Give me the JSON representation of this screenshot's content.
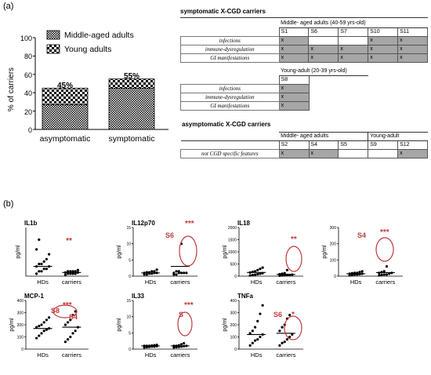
{
  "panel_a_label": "(a)",
  "panel_b_label": "(b)",
  "colors": {
    "accent": "#c0393b",
    "filled_cell": "#a6a6a6"
  },
  "bar_chart": {
    "legend": [
      "Middle-aged adults",
      "Young adults"
    ],
    "ylabel": "% of carriers",
    "ticks": [
      "0",
      "20",
      "40",
      "60",
      "80",
      "100"
    ],
    "categories": [
      "asymptomatic",
      "symptomatic"
    ],
    "bar_labels": [
      "45%",
      "55%"
    ]
  },
  "chart_data": [
    {
      "type": "bar",
      "stacked": true,
      "categories": [
        "asymptomatic",
        "symptomatic"
      ],
      "series": [
        {
          "name": "Middle-aged adults",
          "values": [
            27,
            45
          ]
        },
        {
          "name": "Young adults",
          "values": [
            18,
            10
          ]
        }
      ],
      "data_labels": [
        "45%",
        "55%"
      ],
      "title": "",
      "xlabel": "",
      "ylabel": "% of carriers",
      "ylim": [
        0,
        100
      ],
      "legend": "top-right"
    },
    {
      "type": "scatter",
      "title": "IL1b",
      "ylabel": "pg/ml",
      "categories": [
        "HDs",
        "carriers"
      ],
      "groups": [
        {
          "name": "HDs",
          "values": [
            1,
            2,
            2,
            3,
            3,
            4,
            4,
            5,
            5,
            6,
            7,
            9,
            11,
            15
          ],
          "mean": 4
        },
        {
          "name": "carriers",
          "values": [
            0.5,
            1,
            1,
            1,
            1,
            1.5,
            1.5,
            2,
            2,
            2,
            2,
            2.5
          ],
          "mean": 1.5
        }
      ],
      "significance": "**"
    },
    {
      "type": "scatter",
      "title": "IL12p70",
      "ylabel": "pg/ml",
      "ylim": [
        0,
        15
      ],
      "ticks": [
        "0",
        "5",
        "10",
        "15"
      ],
      "categories": [
        "HDs",
        "carriers"
      ],
      "groups": [
        {
          "name": "HDs",
          "values": [
            0.5,
            0.5,
            0.8,
            0.8,
            1,
            1,
            1,
            1.2,
            1.2,
            1.5,
            1.5,
            2
          ],
          "mean": 1
        },
        {
          "name": "carriers",
          "values": [
            0.5,
            0.5,
            1,
            1,
            1,
            1,
            1,
            1.5,
            1.5,
            10
          ],
          "mean": 3
        }
      ],
      "significance": "***",
      "outlier_label": "S6"
    },
    {
      "type": "scatter",
      "title": "IL18",
      "ylabel": "pg/ml",
      "ylim": [
        0,
        2000
      ],
      "ticks": [
        "0",
        "500",
        "1000",
        "1500",
        "2000"
      ],
      "categories": [
        "HDs",
        "carriers"
      ],
      "groups": [
        {
          "name": "HDs",
          "values": [
            30,
            50,
            60,
            80,
            100,
            120,
            150,
            180,
            200,
            250,
            300,
            350
          ],
          "mean": 150
        },
        {
          "name": "carriers",
          "values": [
            20,
            30,
            40,
            50,
            50,
            60,
            80,
            100,
            120,
            250
          ],
          "mean": 70
        }
      ],
      "significance": "**"
    },
    {
      "type": "scatter",
      "title": "",
      "ylabel": "pg/ml",
      "ylim": [
        0,
        300
      ],
      "ticks": [
        "0",
        "100",
        "200",
        "300"
      ],
      "categories": [
        "HDs",
        "carriers"
      ],
      "groups": [
        {
          "name": "HDs",
          "values": [
            5,
            8,
            10,
            10,
            12,
            15,
            15,
            18,
            20,
            20,
            25,
            30
          ],
          "mean": 15
        },
        {
          "name": "carriers",
          "values": [
            5,
            8,
            10,
            10,
            15,
            20,
            20,
            25,
            30,
            60
          ],
          "mean": 22
        }
      ],
      "significance": "***",
      "outlier_label": "S4"
    },
    {
      "type": "scatter",
      "title": "MCP-1",
      "ylabel": "pg/ml",
      "ylim": [
        0,
        400
      ],
      "ticks": [
        "0",
        "100",
        "200",
        "300",
        "400"
      ],
      "categories": [
        "HDs",
        "carriers"
      ],
      "groups": [
        {
          "name": "HDs",
          "values": [
            90,
            110,
            130,
            150,
            160,
            170,
            180,
            190,
            200,
            220,
            240,
            260
          ],
          "mean": 170
        },
        {
          "name": "carriers",
          "values": [
            60,
            80,
            100,
            130,
            150,
            180,
            200,
            220,
            240,
            280,
            310
          ],
          "mean": 180
        }
      ],
      "significance": "***",
      "outlier_labels": [
        "S8",
        "S4"
      ]
    },
    {
      "type": "scatter",
      "title": "IL33",
      "ylabel": "pg/ml",
      "ylim": [
        0,
        15
      ],
      "ticks": [
        "0",
        "5",
        "10",
        "15"
      ],
      "categories": [
        "HDs",
        "carriers"
      ],
      "groups": [
        {
          "name": "HDs",
          "values": [
            0.5,
            0.6,
            0.7,
            0.8,
            0.8,
            0.9,
            1,
            1,
            1,
            1.1,
            1.2,
            1.3
          ],
          "mean": 1
        },
        {
          "name": "carriers",
          "values": [
            0.5,
            0.6,
            0.7,
            0.8,
            0.9,
            1,
            1,
            1,
            1.2,
            1.5,
            1.8
          ],
          "mean": 1
        }
      ],
      "significance": "***",
      "outlier_label": "S"
    },
    {
      "type": "scatter",
      "title": "TNFa",
      "ylabel": "pg/ml",
      "ylim": [
        0,
        400
      ],
      "ticks": [
        "0",
        "100",
        "200",
        "300",
        "400"
      ],
      "categories": [
        "HDs",
        "carriers"
      ],
      "groups": [
        {
          "name": "HDs",
          "values": [
            30,
            50,
            70,
            80,
            100,
            120,
            130,
            150,
            180,
            230,
            290,
            360
          ],
          "mean": 120
        },
        {
          "name": "carriers",
          "values": [
            30,
            50,
            60,
            80,
            100,
            120,
            150,
            180,
            200,
            250,
            280
          ],
          "mean": 130
        }
      ],
      "significance": "*",
      "outlier_label": "S6"
    }
  ],
  "tables": {
    "symptomatic_title": "symptomatic X-CGD carriers",
    "middle_header": "Middle- aged adults (40-59 yrs-old)",
    "middle_cols": [
      "S1",
      "S6",
      "S7",
      "S10",
      "S11"
    ],
    "rows": [
      "infections",
      "immune-dysregulation",
      "GI manifestations"
    ],
    "middle_cells": [
      [
        "x",
        "",
        "",
        "x",
        "x"
      ],
      [
        "x",
        "x",
        "x",
        "x",
        "x"
      ],
      [
        "x",
        "x",
        "x",
        "x",
        "x"
      ]
    ],
    "young_header": "Young-adult (20-39 yrs-old)",
    "young_cols": [
      "S8"
    ],
    "young_cells": [
      [
        "x"
      ],
      [
        "x"
      ],
      [
        "x"
      ]
    ],
    "asym_title": "asymptomatic X-CGD carriers",
    "asym_middle_header": "Middle- aged adults",
    "asym_young_header": "Young-adult",
    "asym_cols": [
      "S2",
      "S4",
      "S5",
      "S9",
      "S12"
    ],
    "asym_row": "not CGD specific features",
    "asym_cells": [
      "x",
      "x",
      "",
      "",
      "x"
    ]
  }
}
